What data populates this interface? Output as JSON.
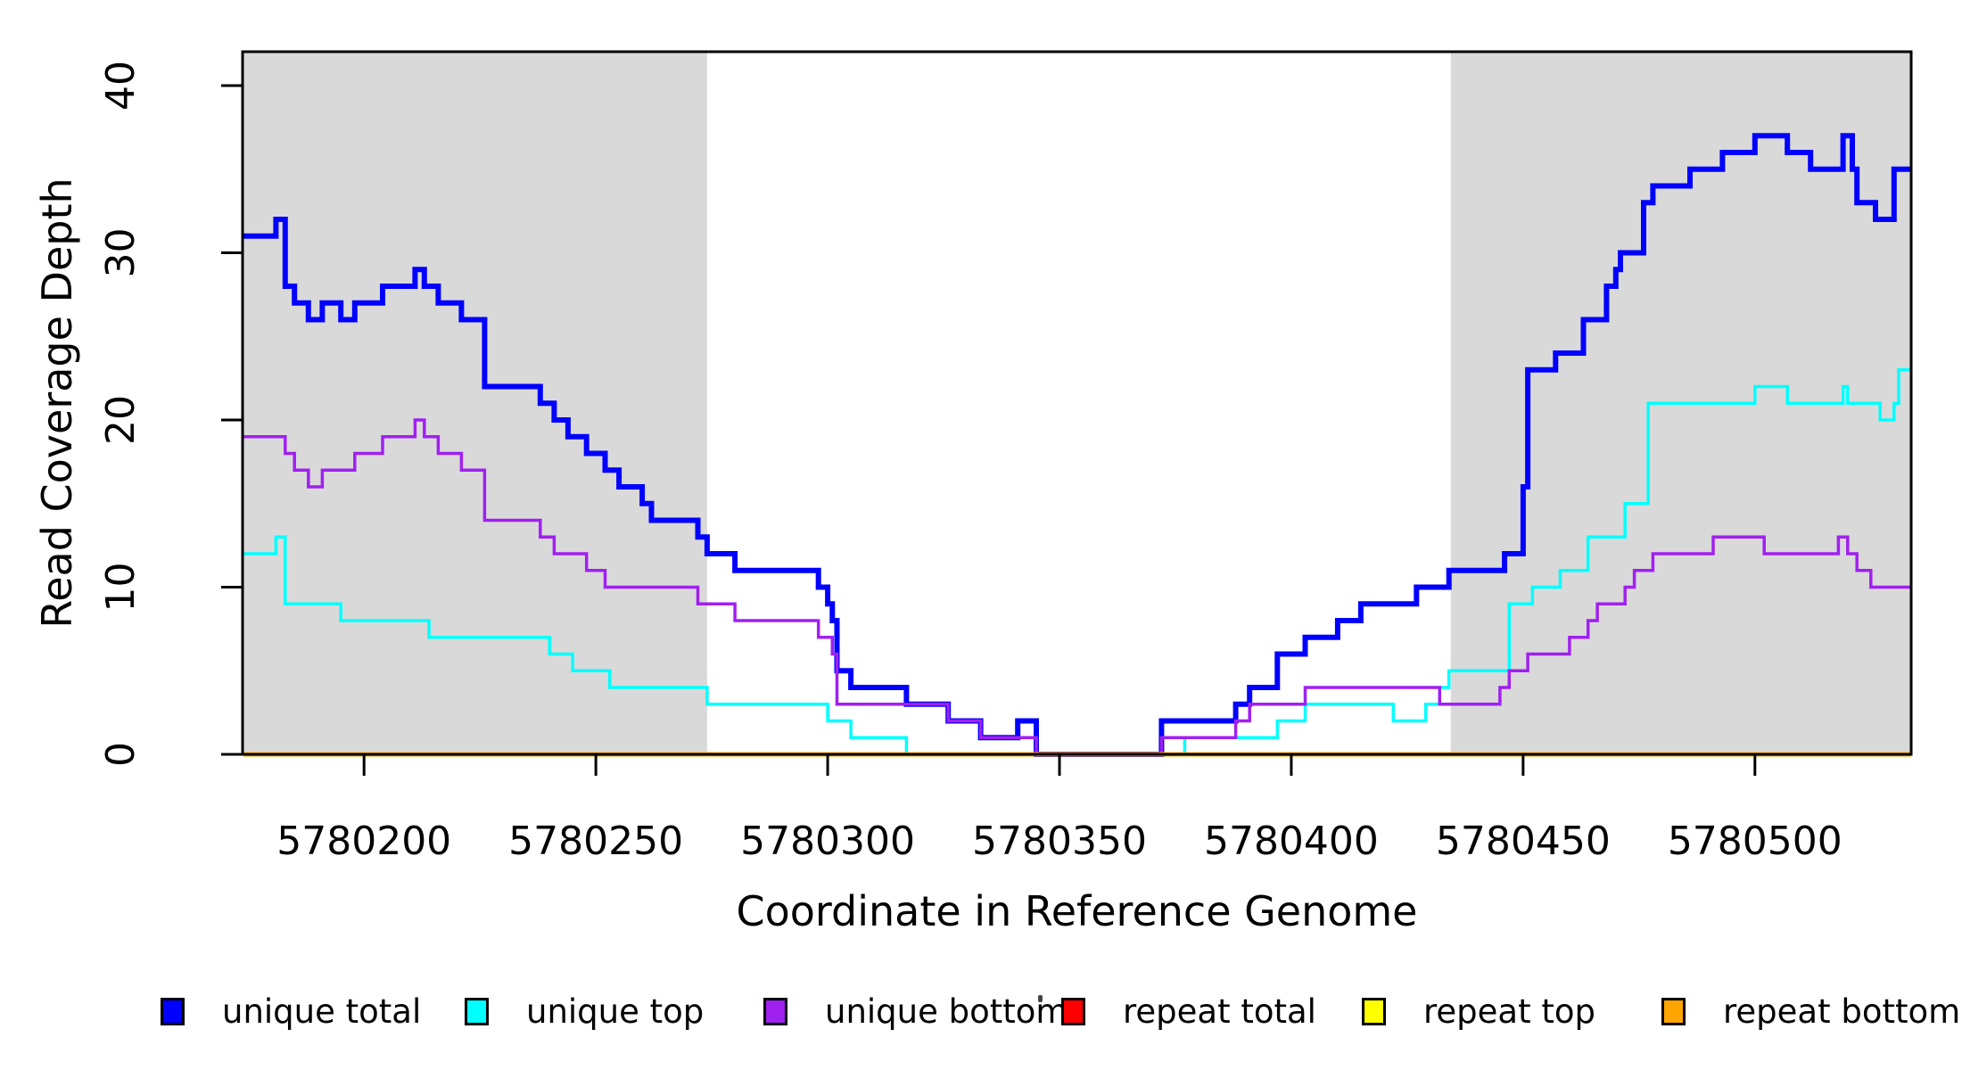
{
  "figure": {
    "xlabel": "Coordinate in Reference Genome",
    "ylabel": "Read Coverage Depth"
  },
  "chart_data": {
    "type": "line",
    "line_style": "step-after",
    "title": "",
    "xlabel": "Coordinate in Reference Genome",
    "ylabel": "Read Coverage Depth",
    "x_domain": [
      5780173.8,
      5780533.7
    ],
    "y_domain": [
      0,
      42
    ],
    "x_ticks": [
      5780200,
      5780250,
      5780300,
      5780350,
      5780400,
      5780450,
      5780500
    ],
    "x_tick_labels": [
      "5780200",
      "5780250",
      "5780300",
      "5780350",
      "5780400",
      "5780450",
      "5780500"
    ],
    "y_ticks": [
      0,
      10,
      20,
      30,
      40
    ],
    "y_tick_labels": [
      "0",
      "10",
      "20",
      "30",
      "40"
    ],
    "grid": false,
    "plot_border": true,
    "background_color": "#ffffff",
    "shade_color": "#d9d9d9",
    "shaded_regions": [
      {
        "x0": 5780173.8,
        "x1": 5780274
      },
      {
        "x0": 5780434.4,
        "x1": 5780533.7
      }
    ],
    "legend_position": "bottom",
    "series": [
      {
        "name": "unique total",
        "color": "#0000ff",
        "width": 6,
        "points": [
          [
            5780174,
            31
          ],
          [
            5780181,
            32
          ],
          [
            5780183,
            28
          ],
          [
            5780185,
            27
          ],
          [
            5780188,
            26
          ],
          [
            5780191,
            27
          ],
          [
            5780195,
            26
          ],
          [
            5780198,
            27
          ],
          [
            5780204,
            28
          ],
          [
            5780211,
            29
          ],
          [
            5780213,
            28
          ],
          [
            5780216,
            27
          ],
          [
            5780221,
            26
          ],
          [
            5780226,
            22
          ],
          [
            5780238,
            21
          ],
          [
            5780241,
            20
          ],
          [
            5780244,
            19
          ],
          [
            5780248,
            18
          ],
          [
            5780252,
            17
          ],
          [
            5780255,
            16
          ],
          [
            5780260,
            15
          ],
          [
            5780262,
            14
          ],
          [
            5780272,
            13
          ],
          [
            5780274,
            12
          ],
          [
            5780280,
            11
          ],
          [
            5780298,
            10
          ],
          [
            5780300,
            9
          ],
          [
            5780301,
            8
          ],
          [
            5780302,
            5
          ],
          [
            5780305,
            4
          ],
          [
            5780317,
            3
          ],
          [
            5780326,
            2
          ],
          [
            5780333,
            1
          ],
          [
            5780341,
            2
          ],
          [
            5780345,
            0
          ],
          [
            5780372,
            2
          ],
          [
            5780388,
            3
          ],
          [
            5780391,
            4
          ],
          [
            5780397,
            6
          ],
          [
            5780403,
            7
          ],
          [
            5780410,
            8
          ],
          [
            5780415,
            9
          ],
          [
            5780427,
            10
          ],
          [
            5780434,
            11
          ],
          [
            5780446,
            12
          ],
          [
            5780450,
            16
          ],
          [
            5780451,
            23
          ],
          [
            5780457,
            24
          ],
          [
            5780463,
            26
          ],
          [
            5780468,
            28
          ],
          [
            5780470,
            29
          ],
          [
            5780471,
            30
          ],
          [
            5780476,
            33
          ],
          [
            5780478,
            34
          ],
          [
            5780486,
            35
          ],
          [
            5780493,
            36
          ],
          [
            5780500,
            37
          ],
          [
            5780507,
            36
          ],
          [
            5780512,
            35
          ],
          [
            5780519,
            37
          ],
          [
            5780521,
            35
          ],
          [
            5780522,
            33
          ],
          [
            5780526,
            32
          ],
          [
            5780530,
            35
          ]
        ]
      },
      {
        "name": "unique top",
        "color": "#00ffff",
        "width": 3.5,
        "points": [
          [
            5780174,
            12
          ],
          [
            5780181,
            13
          ],
          [
            5780183,
            9
          ],
          [
            5780195,
            8
          ],
          [
            5780214,
            7
          ],
          [
            5780240,
            6
          ],
          [
            5780245,
            5
          ],
          [
            5780253,
            4
          ],
          [
            5780274,
            3
          ],
          [
            5780300,
            2
          ],
          [
            5780305,
            1
          ],
          [
            5780317,
            0
          ],
          [
            5780377,
            1
          ],
          [
            5780397,
            2
          ],
          [
            5780403,
            3
          ],
          [
            5780422,
            2
          ],
          [
            5780429,
            3
          ],
          [
            5780432,
            4
          ],
          [
            5780434,
            5
          ],
          [
            5780447,
            9
          ],
          [
            5780452,
            10
          ],
          [
            5780458,
            11
          ],
          [
            5780464,
            13
          ],
          [
            5780472,
            15
          ],
          [
            5780477,
            21
          ],
          [
            5780500,
            22
          ],
          [
            5780507,
            21
          ],
          [
            5780519,
            22
          ],
          [
            5780520,
            21
          ],
          [
            5780527,
            20
          ],
          [
            5780530,
            21
          ],
          [
            5780531,
            23
          ]
        ]
      },
      {
        "name": "unique bottom",
        "color": "#a020f0",
        "width": 3.5,
        "points": [
          [
            5780174,
            19
          ],
          [
            5780183,
            18
          ],
          [
            5780185,
            17
          ],
          [
            5780188,
            16
          ],
          [
            5780191,
            17
          ],
          [
            5780198,
            18
          ],
          [
            5780204,
            19
          ],
          [
            5780211,
            20
          ],
          [
            5780213,
            19
          ],
          [
            5780216,
            18
          ],
          [
            5780221,
            17
          ],
          [
            5780226,
            14
          ],
          [
            5780238,
            13
          ],
          [
            5780241,
            12
          ],
          [
            5780248,
            11
          ],
          [
            5780252,
            10
          ],
          [
            5780272,
            9
          ],
          [
            5780280,
            8
          ],
          [
            5780298,
            7
          ],
          [
            5780301,
            6
          ],
          [
            5780302,
            3
          ],
          [
            5780326,
            2
          ],
          [
            5780333,
            1
          ],
          [
            5780345,
            0
          ],
          [
            5780372,
            1
          ],
          [
            5780388,
            2
          ],
          [
            5780391,
            3
          ],
          [
            5780403,
            4
          ],
          [
            5780432,
            3
          ],
          [
            5780445,
            4
          ],
          [
            5780447,
            5
          ],
          [
            5780451,
            6
          ],
          [
            5780460,
            7
          ],
          [
            5780464,
            8
          ],
          [
            5780466,
            9
          ],
          [
            5780472,
            10
          ],
          [
            5780474,
            11
          ],
          [
            5780478,
            12
          ],
          [
            5780491,
            13
          ],
          [
            5780502,
            12
          ],
          [
            5780518,
            13
          ],
          [
            5780520,
            12
          ],
          [
            5780522,
            11
          ],
          [
            5780525,
            10
          ]
        ]
      },
      {
        "name": "repeat total",
        "color": "#ff0000",
        "width": 3.5,
        "points": [
          [
            5780174,
            0
          ]
        ]
      },
      {
        "name": "repeat top",
        "color": "#ffff00",
        "width": 3.5,
        "points": [
          [
            5780174,
            0
          ]
        ]
      },
      {
        "name": "repeat bottom",
        "color": "#ffa500",
        "width": 5,
        "points": [
          [
            5780174,
            0
          ]
        ]
      }
    ]
  },
  "legend": {
    "items": [
      {
        "label": "unique total",
        "color": "#0000ff"
      },
      {
        "label": "unique top",
        "color": "#00ffff"
      },
      {
        "label": "unique bottom",
        "color": "#a020f0"
      },
      {
        "label": "repeat total",
        "color": "#ff0000"
      },
      {
        "label": "repeat top",
        "color": "#ffff00"
      },
      {
        "label": "repeat bottom",
        "color": "#ffa500"
      }
    ]
  }
}
